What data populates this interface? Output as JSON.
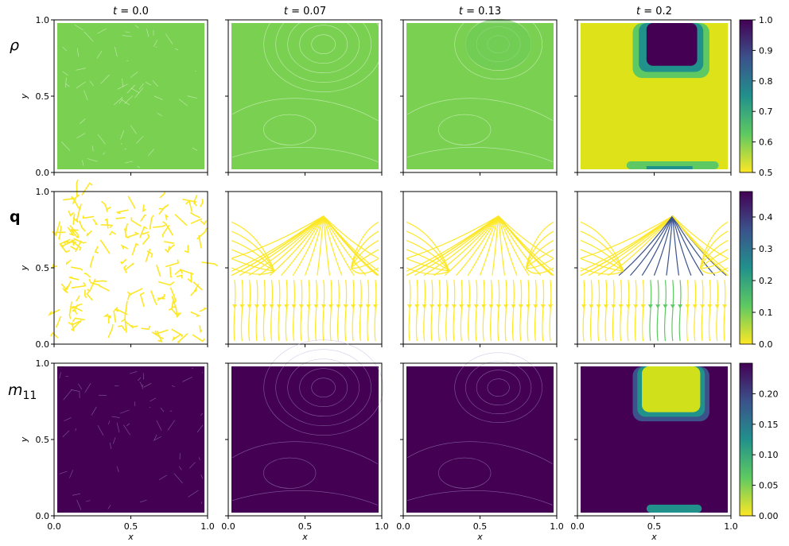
{
  "chart_data": {
    "type": "heatmap",
    "columns": [
      "t = 0.0",
      "t = 0.07",
      "t = 0.13",
      "t = 0.2"
    ],
    "column_time": [
      {
        "t": "t",
        "eq": " = 0.0"
      },
      {
        "t": "t",
        "eq": " = 0.07"
      },
      {
        "t": "t",
        "eq": " = 0.13"
      },
      {
        "t": "t",
        "eq": " = 0.2"
      }
    ],
    "rows": [
      {
        "label": "ρ",
        "kind": "contour",
        "colorbar": {
          "range": [
            0.5,
            1.0
          ],
          "ticks": [
            "1.0",
            "0.9",
            "0.8",
            "0.7",
            "0.6",
            "0.5"
          ],
          "reversed": false
        }
      },
      {
        "label": "q",
        "kind": "streamlines",
        "colorbar": {
          "range": [
            0.0,
            0.48
          ],
          "ticks": [
            "0.4",
            "0.3",
            "0.2",
            "0.1",
            "0.0"
          ],
          "reversed": false
        }
      },
      {
        "label": "m",
        "sub": "11",
        "kind": "contour",
        "colorbar": {
          "range": [
            0.0,
            0.25
          ],
          "ticks": [
            "0.20",
            "0.15",
            "0.10",
            "0.05",
            "0.00"
          ],
          "reversed": true
        }
      }
    ],
    "xlabel": "x",
    "ylabel": "y",
    "x_ticks": [
      "0.0",
      "0.5",
      "1.0"
    ],
    "y_ticks": [
      "1.0",
      "0.5",
      "0.0"
    ],
    "xlim": [
      0,
      1
    ],
    "ylim": [
      0,
      1
    ],
    "colormap": "viridis",
    "colors": {
      "rho_background": "#7ad151",
      "rho_late": "#dde318",
      "stream": "#fde725",
      "m_background": "#440154",
      "m_blob": "#d0e11c"
    }
  }
}
